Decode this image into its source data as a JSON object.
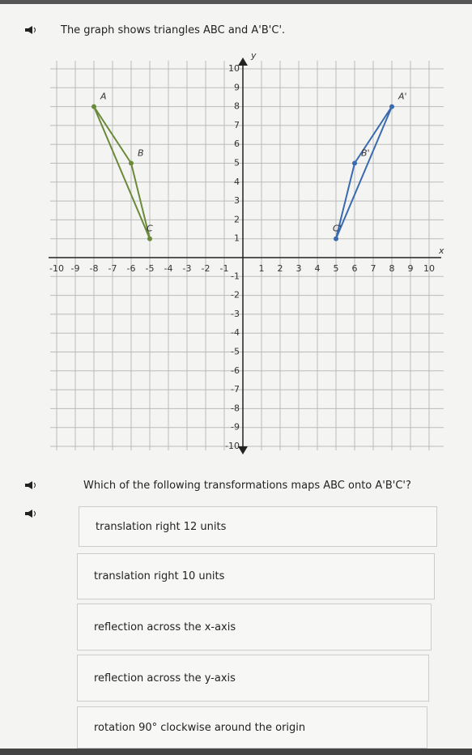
{
  "header": {
    "text": "The graph shows triangles ABC and A'B'C'."
  },
  "graph": {
    "xlim": [
      -10,
      10
    ],
    "ylim": [
      -10,
      10
    ],
    "xticks": [
      -10,
      -9,
      -8,
      -7,
      -6,
      -5,
      -4,
      -3,
      -2,
      -1,
      1,
      2,
      3,
      4,
      5,
      6,
      7,
      8,
      9,
      10
    ],
    "yticks": [
      -10,
      -9,
      -8,
      -7,
      -6,
      -5,
      -4,
      -3,
      -2,
      -1,
      1,
      2,
      3,
      4,
      5,
      6,
      7,
      8,
      9,
      10
    ],
    "xlabel": "x",
    "ylabel": "y",
    "triangles": [
      {
        "color": "#6a8a3a",
        "points": [
          {
            "label": "A",
            "x": -8,
            "y": 8
          },
          {
            "label": "B",
            "x": -6,
            "y": 5
          },
          {
            "label": "C",
            "x": -5,
            "y": 1
          }
        ]
      },
      {
        "color": "#3a6ab0",
        "points": [
          {
            "label": "A'",
            "x": 8,
            "y": 8
          },
          {
            "label": "B'",
            "x": 6,
            "y": 5
          },
          {
            "label": "C'",
            "x": 5,
            "y": 1
          }
        ]
      }
    ]
  },
  "question": "Which of the following transformations maps ABC onto A'B'C'?",
  "options": [
    "translation right 12 units",
    "translation right 10 units",
    "reflection across the x-axis",
    "reflection across the y-axis",
    "rotation 90° clockwise around the origin"
  ]
}
